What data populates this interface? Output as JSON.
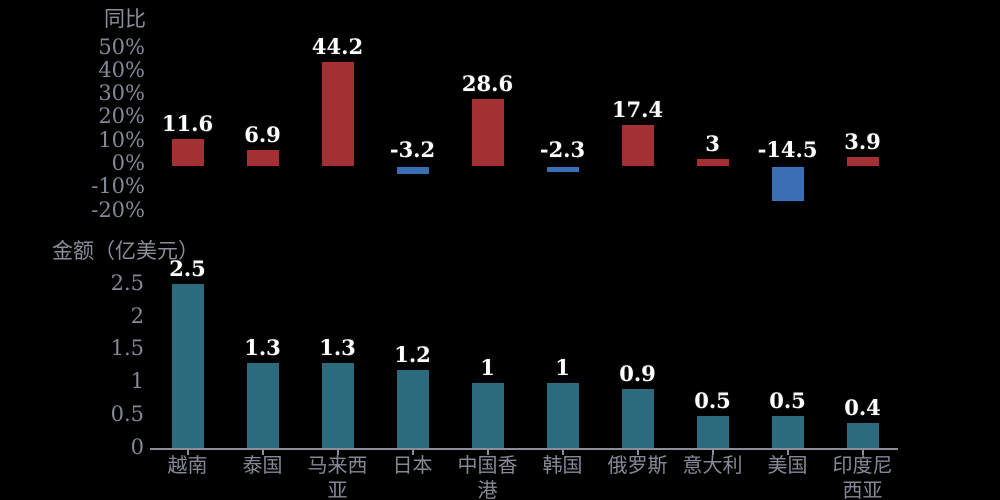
{
  "background_color": "#000000",
  "colors": {
    "positive_bar": "#a33134",
    "negative_bar": "#3a6fb5",
    "amount_bar": "#2b6b7d",
    "axis_text": "#858896",
    "axis_line": "#8b8e99",
    "data_label": "#ffffff"
  },
  "chart_data": [
    {
      "type": "bar",
      "title": "同比",
      "categories": [
        "越南",
        "泰国",
        "马来西亚",
        "日本",
        "中国香港",
        "韩国",
        "俄罗斯",
        "意大利",
        "美国",
        "印度尼西亚"
      ],
      "values": [
        11.6,
        6.9,
        44.2,
        -3.2,
        28.6,
        -2.3,
        17.4,
        3,
        -14.5,
        3.9
      ],
      "value_labels": [
        "11.6",
        "6.9",
        "44.2",
        "-3.2",
        "28.6",
        "-2.3",
        "17.4",
        "3",
        "-14.5",
        "3.9"
      ],
      "ytick_labels": [
        "50%",
        "40%",
        "30%",
        "20%",
        "10%",
        "0%",
        "-10%",
        "-20%"
      ],
      "ylim": [
        -20,
        50
      ],
      "ylabel": "同比 (%)",
      "xlabel": "",
      "grid": false,
      "legend": "none",
      "positive_color": "#a33134",
      "negative_color": "#3a6fb5",
      "category_axis_visible": false
    },
    {
      "type": "bar",
      "title": "金额（亿美元）",
      "categories": [
        "越南",
        "泰国",
        "马来西亚",
        "日本",
        "中国香港",
        "韩国",
        "俄罗斯",
        "意大利",
        "美国",
        "印度尼西亚"
      ],
      "category_label_lines": [
        [
          "越南"
        ],
        [
          "泰国"
        ],
        [
          "马来西",
          "亚"
        ],
        [
          "日本"
        ],
        [
          "中国香",
          "港"
        ],
        [
          "韩国"
        ],
        [
          "俄罗斯"
        ],
        [
          "意大利"
        ],
        [
          "美国"
        ],
        [
          "印度尼",
          "西亚"
        ]
      ],
      "values": [
        2.5,
        1.3,
        1.3,
        1.2,
        1,
        1,
        0.9,
        0.5,
        0.5,
        0.4
      ],
      "value_labels": [
        "2.5",
        "1.3",
        "1.3",
        "1.2",
        "1",
        "1",
        "0.9",
        "0.5",
        "0.5",
        "0.4"
      ],
      "ytick_labels": [
        "2.5",
        "2",
        "1.5",
        "1",
        "0.5",
        "0"
      ],
      "ytick_values": [
        2.5,
        2,
        1.5,
        1,
        0.5,
        0
      ],
      "ylim": [
        0,
        2.5
      ],
      "ylabel": "金额（亿美元）",
      "xlabel": "",
      "grid": false,
      "legend": "none",
      "bar_color": "#2b6b7d",
      "category_axis_visible": true
    }
  ]
}
